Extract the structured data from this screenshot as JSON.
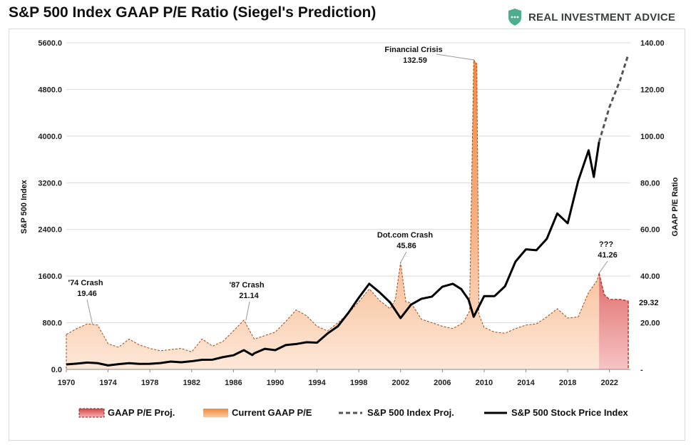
{
  "title": "S&P 500 Index GAAP P/E Ratio (Siegel's Prediction)",
  "brand": {
    "name": "REAL INVESTMENT ADVICE",
    "logo_icon": "shield-logo-icon",
    "logo_color": "#4cae8c"
  },
  "chart_data": {
    "type": "line",
    "title": "S&P 500 Index GAAP P/E Ratio (Siegel's Prediction)",
    "ylabel_left": "S&P 500 Index",
    "ylabel_right": "GAAP P/E Ratio",
    "ylim_left": [
      0,
      5600
    ],
    "ylim_right": [
      0,
      140
    ],
    "xlim": [
      1970,
      2024
    ],
    "left_ticks": [
      "0.0",
      "800.0",
      "1600.0",
      "2400.0",
      "3200.0",
      "4000.0",
      "4800.0",
      "5600.0"
    ],
    "left_tick_values": [
      0,
      800,
      1600,
      2400,
      3200,
      4000,
      4800,
      5600
    ],
    "right_ticks": [
      "-",
      "20.00",
      "40.00",
      "60.00",
      "80.00",
      "100.00",
      "120.00",
      "140.00"
    ],
    "right_tick_values": [
      0,
      20,
      40,
      60,
      80,
      100,
      120,
      140
    ],
    "x_ticks": [
      "1970",
      "1974",
      "1978",
      "1982",
      "1986",
      "1990",
      "1994",
      "1998",
      "2002",
      "2006",
      "2010",
      "2014",
      "2018",
      "2022"
    ],
    "x_tick_values": [
      1970,
      1974,
      1978,
      1982,
      1986,
      1990,
      1994,
      1998,
      2002,
      2006,
      2010,
      2014,
      2018,
      2022
    ],
    "grid": "horizontal",
    "legend_position": "bottom",
    "colors": {
      "pe_fill": "#f4a66c",
      "pe_fill_light": "#fbe1cc",
      "proj_fill": "#e27f7f",
      "proj_line": "#c0392b",
      "index_line": "#000000",
      "index_proj_line": "#555555",
      "grid": "#d9d9d9",
      "highlight": "#d91e1e"
    },
    "series": [
      {
        "name": "Current GAAP P/E",
        "axis": "right",
        "style": "area",
        "x": [
          1970,
          1971,
          1972,
          1972.5,
          1973,
          1974,
          1975,
          1976,
          1977,
          1978,
          1979,
          1980,
          1981,
          1982,
          1983,
          1984,
          1985,
          1986,
          1987,
          1987.5,
          1988,
          1989,
          1990,
          1991,
          1992,
          1993,
          1994,
          1995,
          1996,
          1997,
          1998,
          1999,
          2000,
          2001,
          2001.5,
          2002,
          2002.5,
          2003,
          2004,
          2005,
          2006,
          2007,
          2008,
          2008.6,
          2009,
          2009.3,
          2009.5,
          2010,
          2011,
          2012,
          2013,
          2014,
          2015,
          2016,
          2017,
          2018,
          2019,
          2020,
          2020.8,
          2021
        ],
        "y": [
          15.0,
          17.5,
          19.5,
          19.3,
          19.0,
          11.0,
          9.5,
          13.0,
          10.5,
          9.0,
          8.0,
          8.5,
          9.0,
          7.5,
          13.0,
          10.0,
          12.0,
          16.5,
          21.14,
          17.0,
          13.0,
          14.5,
          16.0,
          20.5,
          25.5,
          23.0,
          18.5,
          16.5,
          20.0,
          24.0,
          29.0,
          34.5,
          29.5,
          26.0,
          30.0,
          45.86,
          29.0,
          28.5,
          21.5,
          20.0,
          18.5,
          17.5,
          20.0,
          25.0,
          132.59,
          131.0,
          23.5,
          18.0,
          16.0,
          15.5,
          17.5,
          19.0,
          19.5,
          22.5,
          26.0,
          22.0,
          22.5,
          33.0,
          38.0,
          41.26
        ]
      },
      {
        "name": "GAAP P/E Proj.",
        "axis": "right",
        "style": "area-dashed",
        "x": [
          2021,
          2021.5,
          2022,
          2023,
          2023.8
        ],
        "y": [
          41.26,
          32.0,
          30.0,
          30.0,
          29.32
        ]
      },
      {
        "name": "S&P 500 Stock Price Index",
        "axis": "left",
        "style": "line",
        "x": [
          1970,
          1971,
          1972,
          1973,
          1974,
          1975,
          1976,
          1977,
          1978,
          1979,
          1980,
          1981,
          1982,
          1983,
          1984,
          1985,
          1986,
          1987,
          1987.8,
          1988,
          1989,
          1990,
          1991,
          1992,
          1993,
          1994,
          1995,
          1996,
          1997,
          1998,
          1999,
          2000,
          2001,
          2002,
          2003,
          2004,
          2005,
          2006,
          2007,
          2007.8,
          2008.5,
          2009,
          2010,
          2011,
          2012,
          2013,
          2014,
          2015,
          2016,
          2017,
          2018,
          2019,
          2020,
          2020.5,
          2021
        ],
        "y": [
          85,
          100,
          118,
          107,
          69,
          90,
          107,
          95,
          96,
          108,
          135,
          122,
          140,
          165,
          167,
          211,
          242,
          330,
          247,
          277,
          353,
          330,
          417,
          435,
          466,
          459,
          615,
          740,
          970,
          1229,
          1469,
          1320,
          1148,
          880,
          1111,
          1211,
          1248,
          1418,
          1468,
          1378,
          1200,
          903,
          1257,
          1257,
          1426,
          1848,
          2059,
          2044,
          2239,
          2674,
          2506,
          3231,
          3756,
          3300,
          3900
        ]
      },
      {
        "name": "S&P 500 Index Proj.",
        "axis": "left",
        "style": "dashed",
        "x": [
          2021,
          2022,
          2023,
          2023.8
        ],
        "y": [
          3900,
          4500,
          4950,
          5400
        ]
      }
    ],
    "annotations": [
      {
        "label": "'74 Crash",
        "value": "19.46",
        "x": 1972.5,
        "y": 19.46
      },
      {
        "label": "'87 Crash",
        "value": "21.14",
        "x": 1987.2,
        "y": 21.14
      },
      {
        "label": "Dot.com Crash",
        "value": "45.86",
        "x": 2002,
        "y": 45.86
      },
      {
        "label": "Financial Crisis",
        "value": "132.59",
        "x": 2009.1,
        "y": 132.59
      },
      {
        "label": "???",
        "value": "41.26",
        "x": 2021,
        "y": 41.26
      },
      {
        "label": "",
        "value": "29.32",
        "x": 2023.8,
        "y": 29.32
      }
    ],
    "legend": [
      "GAAP P/E Proj.",
      "Current GAAP P/E",
      "S&P 500 Index Proj.",
      "S&P 500 Stock Price Index"
    ]
  }
}
